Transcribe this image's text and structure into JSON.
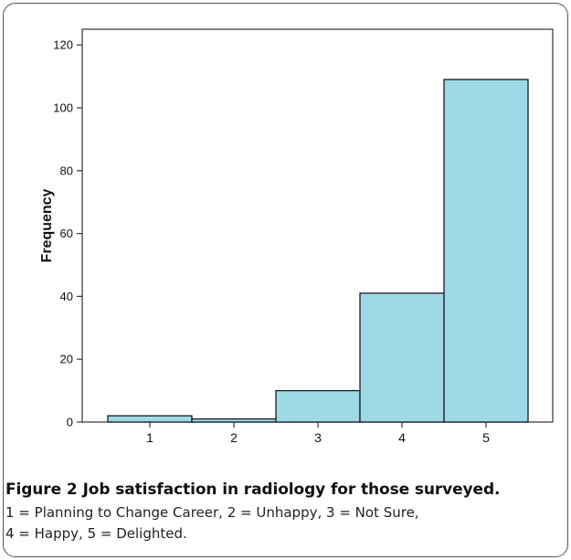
{
  "figure": {
    "label": "Figure 2",
    "title": "Job satisfaction in radiology for those surveyed.",
    "caption_lines": [
      "1 = Planning to Change Career, 2 = Unhappy, 3 = Not Sure,",
      "4 = Happy, 5 = Delighted."
    ]
  },
  "chart_data": {
    "type": "bar",
    "categories": [
      "1",
      "2",
      "3",
      "4",
      "5"
    ],
    "values": [
      2,
      1,
      10,
      41,
      109
    ],
    "title": "",
    "xlabel": "",
    "ylabel": "Frequency",
    "ylim": [
      0,
      125
    ],
    "yticks": [
      0,
      20,
      40,
      60,
      80,
      100,
      120
    ],
    "grid": false,
    "colors": {
      "bar_fill": "#9ED9E8",
      "bar_stroke": "#1a1a1a",
      "axis": "#333333"
    }
  }
}
